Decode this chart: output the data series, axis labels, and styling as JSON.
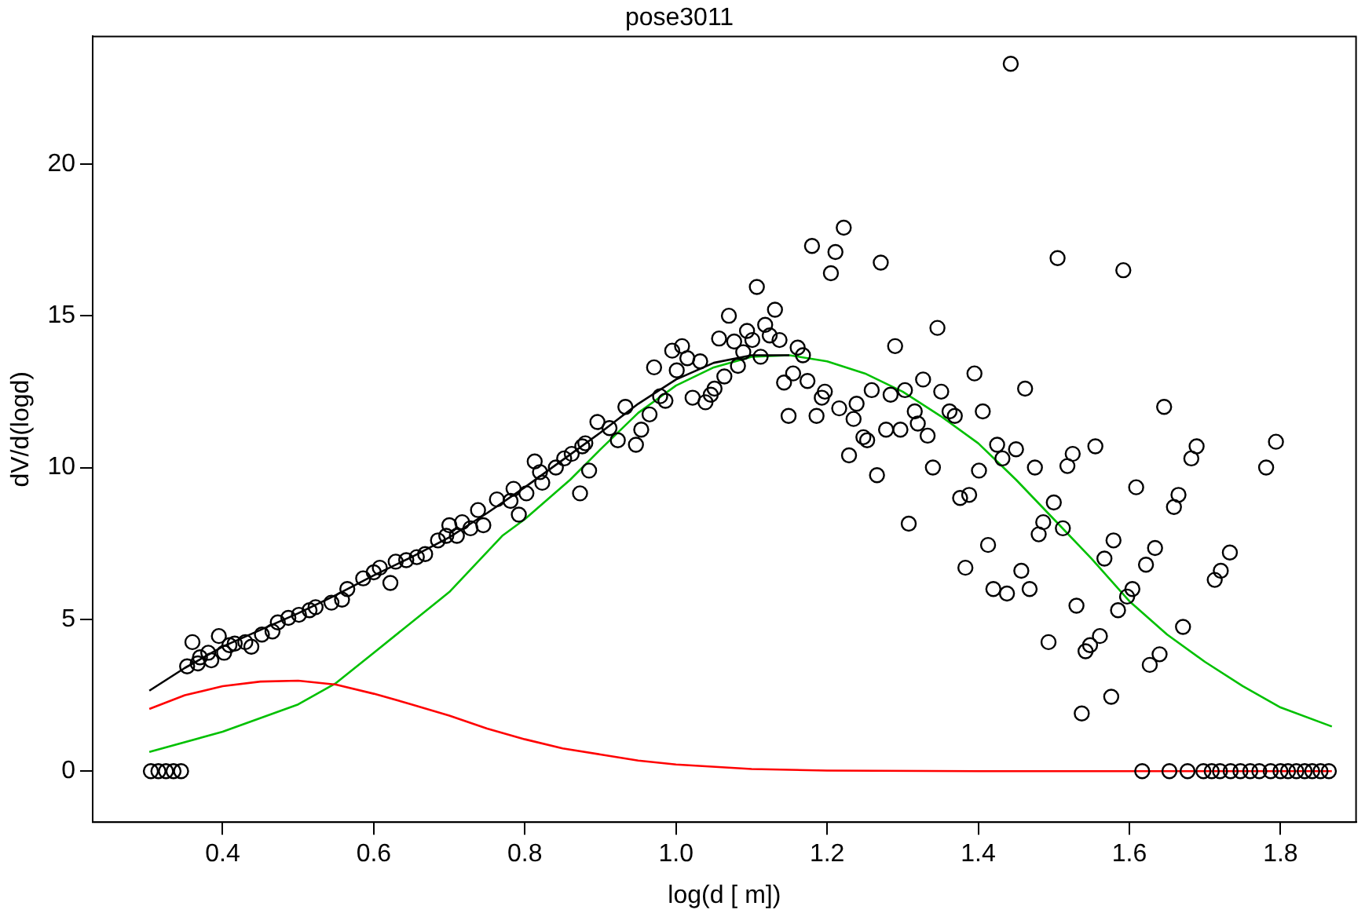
{
  "chart_data": {
    "type": "scatter",
    "title": "pose3011",
    "xlabel": "log(d [ m])",
    "ylabel": "dV/d(logd)",
    "xlim": [
      0.228,
      1.9
    ],
    "ylim": [
      -1.68,
      24.2
    ],
    "xticks": [
      0.4,
      0.6,
      0.8,
      {
        "value": 1,
        "label": "1.0"
      },
      1.2,
      1.4,
      1.6,
      1.8
    ],
    "yticks": [
      0,
      5,
      10,
      15,
      20
    ],
    "grid": false,
    "legend": false,
    "marker": "circle",
    "series": [
      {
        "color": "#000000",
        "x": [
          0.305,
          0.315,
          0.325,
          0.335,
          0.345,
          0.353,
          0.36,
          0.367,
          0.37,
          0.381,
          0.385,
          0.395,
          0.402,
          0.409,
          0.416,
          0.43,
          0.438,
          0.452,
          0.466,
          0.473,
          0.487,
          0.501,
          0.515,
          0.523,
          0.544,
          0.558,
          0.565,
          0.586,
          0.6,
          0.608,
          0.622,
          0.629,
          0.643,
          0.657,
          0.668,
          0.685,
          0.696,
          0.7,
          0.71,
          0.717,
          0.728,
          0.738,
          0.745,
          0.763,
          0.781,
          0.785,
          0.792,
          0.802,
          0.813,
          0.82,
          0.823,
          0.841,
          0.852,
          0.862,
          0.873,
          0.88,
          0.885,
          0.896,
          0.876,
          0.912,
          0.923,
          0.933,
          0.947,
          0.954,
          0.965,
          0.971,
          0.979,
          0.986,
          0.995,
          1.001,
          1.008,
          1.015,
          1.022,
          1.032,
          1.039,
          1.046,
          1.051,
          1.057,
          1.064,
          1.07,
          1.077,
          1.082,
          1.089,
          1.094,
          1.101,
          1.107,
          1.112,
          1.118,
          1.124,
          1.131,
          1.137,
          1.143,
          1.149,
          1.155,
          1.161,
          1.168,
          1.174,
          1.18,
          1.186,
          1.193,
          1.197,
          1.205,
          1.211,
          1.216,
          1.222,
          1.229,
          1.235,
          1.239,
          1.248,
          1.253,
          1.259,
          1.266,
          1.271,
          1.278,
          1.284,
          1.29,
          1.297,
          1.303,
          1.308,
          1.316,
          1.32,
          1.327,
          1.333,
          1.34,
          1.346,
          1.351,
          1.362,
          1.369,
          1.376,
          1.383,
          1.388,
          1.395,
          1.401,
          1.406,
          1.413,
          1.42,
          1.425,
          1.432,
          1.438,
          1.443,
          1.45,
          1.457,
          1.462,
          1.468,
          1.475,
          1.48,
          1.486,
          1.493,
          1.5,
          1.505,
          1.512,
          1.518,
          1.525,
          1.53,
          1.537,
          1.542,
          1.548,
          1.555,
          1.561,
          1.567,
          1.576,
          1.579,
          1.585,
          1.592,
          1.597,
          1.604,
          1.609,
          1.622,
          1.627,
          1.634,
          1.64,
          1.646,
          1.659,
          1.665,
          1.671,
          1.682,
          1.689,
          1.713,
          1.721,
          1.733,
          1.781,
          1.794,
          1.617,
          1.653,
          1.677,
          1.698,
          1.709,
          1.72,
          1.734,
          1.747,
          1.76,
          1.772,
          1.787,
          1.8,
          1.81,
          1.821,
          1.832,
          1.842,
          1.853,
          1.864
        ],
        "values": [
          0,
          0,
          0,
          0,
          0,
          3.45,
          4.25,
          3.55,
          3.75,
          3.9,
          3.65,
          4.45,
          3.9,
          4.15,
          4.2,
          4.25,
          4.1,
          4.5,
          4.6,
          4.9,
          5.05,
          5.15,
          5.3,
          5.4,
          5.55,
          5.65,
          6.0,
          6.35,
          6.55,
          6.7,
          6.2,
          6.9,
          6.95,
          7.05,
          7.15,
          7.6,
          7.75,
          8.1,
          7.75,
          8.2,
          8.0,
          8.6,
          8.1,
          8.95,
          8.9,
          9.3,
          8.45,
          9.15,
          10.2,
          9.85,
          9.5,
          10.0,
          10.3,
          10.45,
          9.15,
          10.8,
          9.9,
          11.5,
          10.7,
          11.3,
          10.9,
          12.0,
          10.75,
          11.25,
          11.75,
          13.3,
          12.35,
          12.2,
          13.85,
          13.2,
          14.0,
          13.6,
          12.3,
          13.5,
          12.15,
          12.4,
          12.6,
          14.25,
          13.0,
          15.0,
          14.15,
          13.35,
          13.8,
          14.5,
          14.2,
          15.95,
          13.65,
          14.7,
          14.35,
          15.2,
          14.2,
          12.8,
          11.7,
          13.1,
          13.95,
          13.7,
          12.85,
          17.3,
          11.7,
          12.3,
          12.5,
          16.4,
          17.1,
          11.95,
          17.9,
          10.4,
          11.6,
          12.1,
          11.0,
          10.9,
          12.55,
          9.75,
          16.75,
          11.25,
          12.4,
          14.0,
          11.25,
          12.55,
          8.15,
          11.85,
          11.45,
          12.9,
          11.05,
          10.0,
          14.6,
          12.5,
          11.85,
          11.7,
          9.0,
          6.7,
          9.1,
          13.1,
          9.9,
          11.85,
          7.45,
          6.0,
          10.75,
          10.3,
          5.85,
          23.3,
          10.6,
          6.6,
          12.6,
          6.0,
          10.0,
          7.8,
          8.2,
          4.25,
          8.85,
          16.9,
          8.0,
          10.05,
          10.45,
          5.45,
          1.9,
          3.95,
          4.15,
          10.7,
          4.45,
          7.0,
          2.45,
          7.6,
          5.3,
          16.5,
          5.75,
          6.0,
          9.35,
          6.8,
          3.5,
          7.35,
          3.85,
          12.0,
          8.7,
          9.1,
          4.75,
          10.3,
          10.7,
          6.3,
          6.6,
          7.2,
          10.0,
          10.85,
          0,
          0,
          0,
          0,
          0,
          0,
          0,
          0,
          0,
          0,
          0,
          0,
          0,
          0,
          0,
          0,
          0,
          0
        ]
      },
      {
        "type": "line",
        "color": "#000000",
        "marker": "none",
        "line_style": "solid",
        "x": [
          0.303,
          0.35,
          0.4,
          0.45,
          0.5,
          0.55,
          0.6,
          0.65,
          0.7,
          0.75,
          0.8,
          0.85,
          0.9,
          0.95,
          1.0,
          1.05,
          1.1,
          1.15
        ],
        "values": [
          2.65,
          3.4,
          4.1,
          4.65,
          5.2,
          5.8,
          6.45,
          7.05,
          7.7,
          8.5,
          9.35,
          10.25,
          11.15,
          12.1,
          12.9,
          13.45,
          13.7,
          13.7
        ]
      },
      {
        "type": "line",
        "color": "#ff0000",
        "marker": "none",
        "line_style": "solid",
        "x": [
          0.303,
          0.35,
          0.4,
          0.45,
          0.5,
          0.55,
          0.6,
          0.65,
          0.7,
          0.75,
          0.8,
          0.85,
          0.9,
          0.95,
          1.0,
          1.1,
          1.2,
          1.4,
          1.6,
          1.868
        ],
        "values": [
          2.05,
          2.5,
          2.8,
          2.95,
          2.98,
          2.85,
          2.55,
          2.2,
          1.83,
          1.4,
          1.05,
          0.75,
          0.55,
          0.35,
          0.22,
          0.07,
          0.02,
          0,
          0,
          0
        ]
      },
      {
        "type": "line",
        "color": "#00c000",
        "marker": "none",
        "line_style": "solid",
        "x": [
          0.303,
          0.4,
          0.5,
          0.55,
          0.6,
          0.7,
          0.77,
          0.8,
          0.86,
          0.9,
          0.95,
          1.0,
          1.05,
          1.1,
          1.15,
          1.2,
          1.25,
          1.3,
          1.35,
          1.4,
          1.45,
          1.5,
          1.55,
          1.6,
          1.65,
          1.7,
          1.75,
          1.8,
          1.868
        ],
        "values": [
          0.63,
          1.3,
          2.2,
          2.9,
          3.9,
          5.9,
          7.75,
          8.3,
          9.6,
          10.6,
          11.8,
          12.7,
          13.3,
          13.65,
          13.7,
          13.5,
          13.1,
          12.5,
          11.7,
          10.8,
          9.6,
          8.3,
          7.0,
          5.6,
          4.5,
          3.6,
          2.8,
          2.1,
          1.47
        ]
      }
    ]
  }
}
